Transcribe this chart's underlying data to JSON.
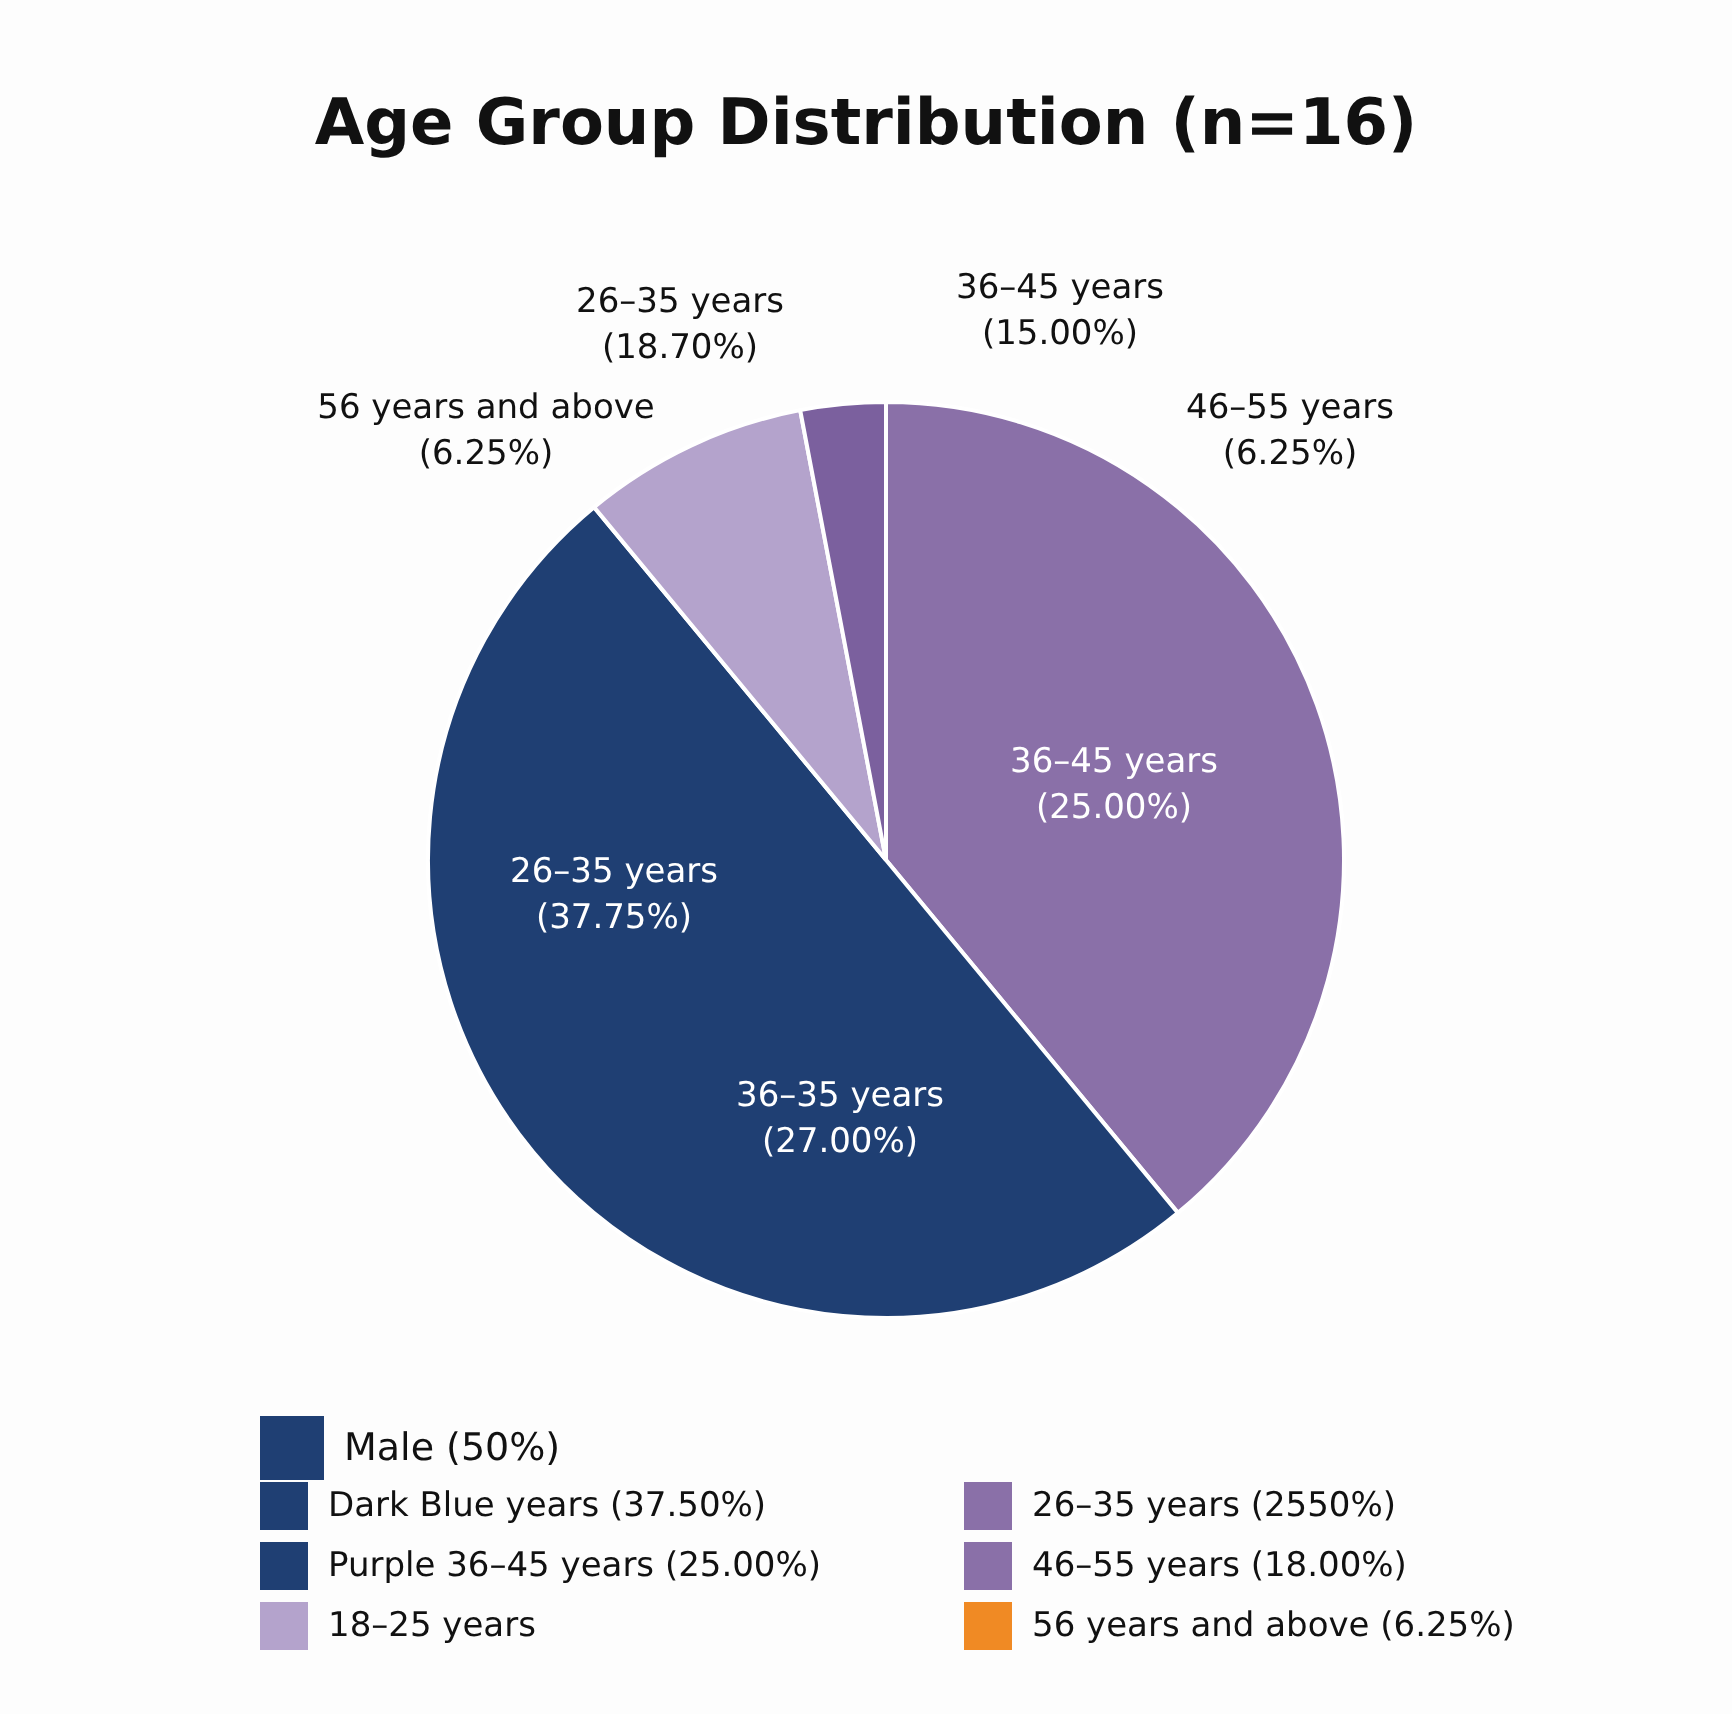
{
  "chart_data": {
    "type": "pie",
    "title": "Age Group Distribution (n=16)",
    "categories": [
      null,
      null,
      null,
      null
    ],
    "values": [
      39,
      50,
      8,
      3
    ],
    "colors": [
      "#8a70a8",
      "#1f3f73",
      "#b4a3cc",
      "#7b609e"
    ],
    "annotations": [
      "26–35 years\n(18.70%)",
      "36–45 years\n(15.00%)",
      "56 years and above\n(6.25%)",
      "46–55 years\n(6.25%)",
      "36–45 years\n(25.00%)",
      "26–35 years\n(37.75%)",
      "36–35 years\n(27.00%)",
      "Male (50%)",
      "Dark Blue years (37.50%)",
      "Purple 36–45 years (25.00%)",
      "18–25 years",
      "26–35 years (2550%)",
      "46–55 years (18.00%)",
      "56 years and above (6.25%)"
    ]
  }
}
